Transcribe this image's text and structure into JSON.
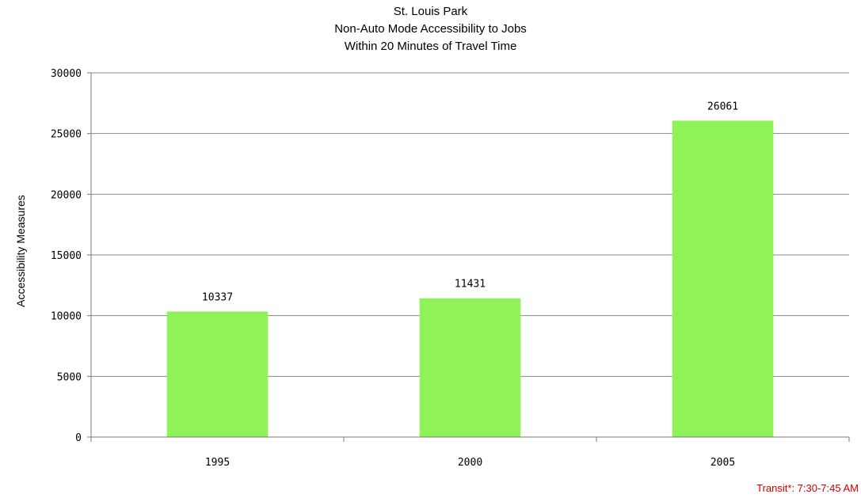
{
  "chart_data": {
    "type": "bar",
    "title": [
      "St. Louis Park",
      "Non-Auto Mode Accessibility to Jobs",
      "Within 20 Minutes of Travel Time"
    ],
    "xlabel": "",
    "ylabel": "Accessibility Measures",
    "categories": [
      "1995",
      "2000",
      "2005"
    ],
    "values": [
      10337,
      11431,
      26061
    ],
    "data_labels": [
      "10337",
      "11431",
      "26061"
    ],
    "ylim": [
      0,
      30000
    ],
    "yticks": [
      0,
      5000,
      10000,
      15000,
      20000,
      25000,
      30000
    ],
    "ytick_labels": [
      "0",
      "5000",
      "10000",
      "15000",
      "20000",
      "25000",
      "30000"
    ],
    "grid": true,
    "legend": "none",
    "colors": {
      "bar": "#8ef258",
      "grid": "#8a8a8a",
      "axis": "#7a7a7a"
    }
  },
  "footnote": "Transit*: 7:30-7:45 AM"
}
